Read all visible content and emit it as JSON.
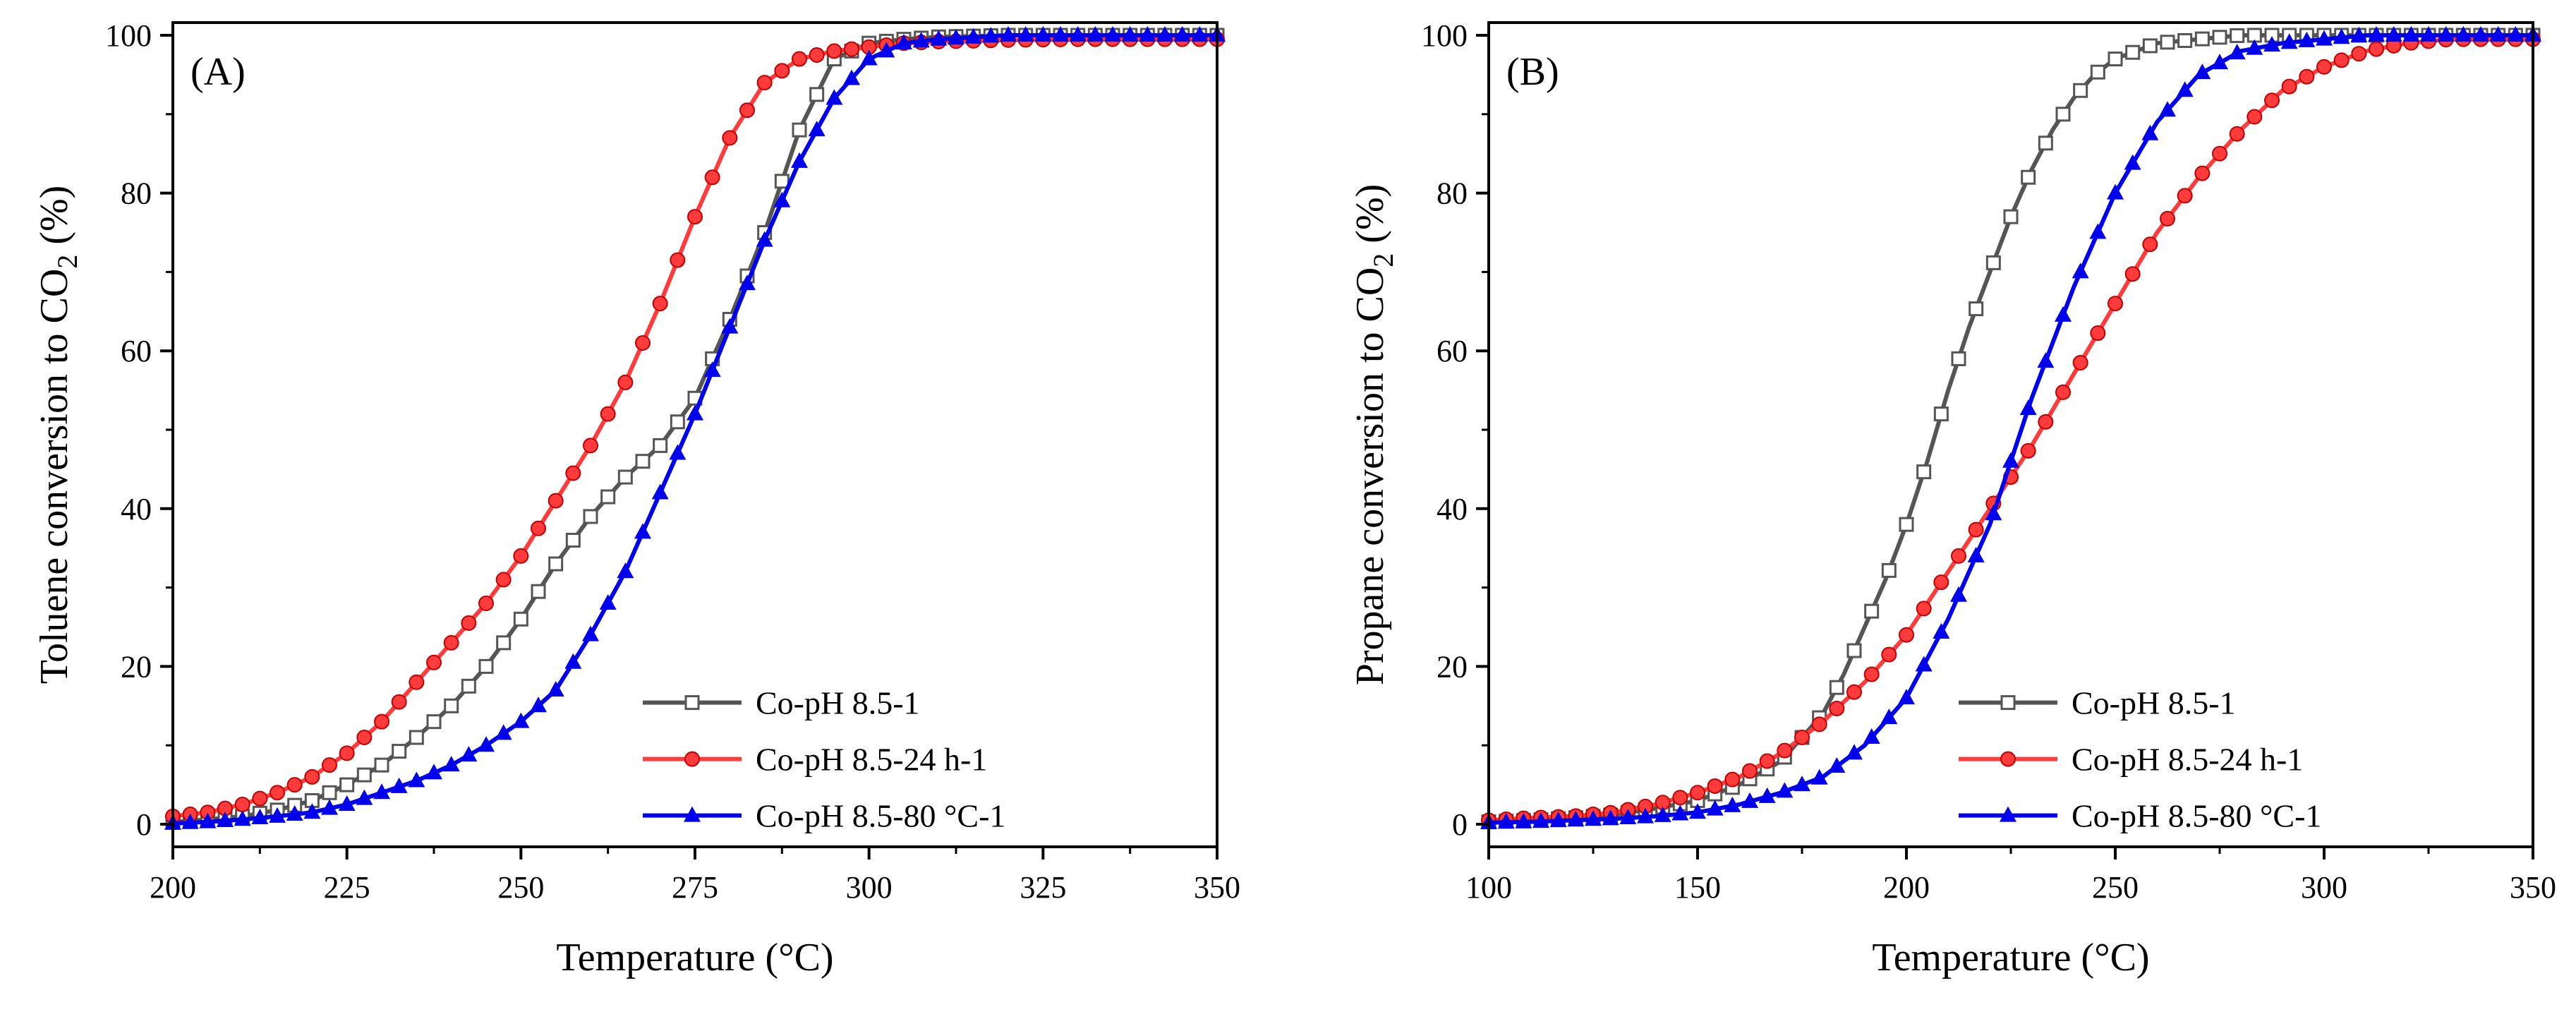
{
  "chart_data": [
    {
      "type": "line",
      "panel_label": "(A)",
      "xlabel": "Temperature (°C)",
      "ylabel": {
        "pre": "Toluene conversion to CO",
        "sub": "2",
        "post": " (%)"
      },
      "xlim": [
        200,
        350
      ],
      "ylim": [
        0,
        100
      ],
      "xticks": [
        "200",
        "225",
        "250",
        "275",
        "300",
        "325",
        "350"
      ],
      "yticks": [
        "0",
        "20",
        "40",
        "60",
        "80",
        "100"
      ],
      "legend_position": "bottom-right",
      "series": [
        {
          "name": "Co-pH 8.5-1",
          "color": "#555555",
          "marker": "square",
          "x": [
            200,
            205,
            210,
            215,
            220,
            225,
            230,
            235,
            240,
            245,
            250,
            255,
            260,
            265,
            270,
            275,
            280,
            285,
            290,
            295,
            300,
            305,
            310,
            320,
            330,
            340,
            350
          ],
          "y": [
            0.3,
            0.6,
            1,
            1.8,
            3,
            5,
            7.5,
            11,
            15,
            20,
            26,
            33,
            39,
            44,
            48,
            54,
            64,
            75,
            88,
            97,
            99,
            99.5,
            99.8,
            100,
            100,
            100,
            100
          ]
        },
        {
          "name": "Co-pH 8.5-24 h-1",
          "color": "#ff3b3b",
          "marker": "circle",
          "x": [
            200,
            205,
            210,
            215,
            220,
            225,
            230,
            235,
            240,
            245,
            250,
            255,
            260,
            265,
            270,
            275,
            280,
            285,
            290,
            295,
            300,
            305,
            310,
            320,
            330,
            340,
            350
          ],
          "y": [
            1,
            1.5,
            2.5,
            4,
            6,
            9,
            13,
            18,
            23,
            28,
            34,
            41,
            48,
            56,
            66,
            77,
            87,
            94,
            97,
            98,
            98.5,
            99,
            99.2,
            99.4,
            99.5,
            99.5,
            99.5
          ]
        },
        {
          "name": "Co-pH 8.5-80 °C-1",
          "color": "#0000ee",
          "marker": "triangle",
          "x": [
            200,
            205,
            210,
            215,
            220,
            225,
            230,
            235,
            240,
            245,
            250,
            255,
            260,
            265,
            270,
            275,
            280,
            285,
            290,
            295,
            300,
            305,
            310,
            320,
            330,
            340,
            350
          ],
          "y": [
            0.1,
            0.3,
            0.6,
            1,
            1.5,
            2.5,
            4,
            5.5,
            7.5,
            10,
            13,
            17,
            24,
            32,
            42,
            52,
            63,
            74,
            84,
            92,
            97,
            99,
            99.5,
            100,
            100,
            100,
            100
          ]
        }
      ]
    },
    {
      "type": "line",
      "panel_label": "(B)",
      "xlabel": "Temperature (°C)",
      "ylabel": {
        "pre": "Propane conversion to CO",
        "sub": "2",
        "post": " (%)"
      },
      "xlim": [
        100,
        350
      ],
      "ylim": [
        0,
        100
      ],
      "xticks": [
        "100",
        "150",
        "200",
        "250",
        "300",
        "350"
      ],
      "yticks": [
        "0",
        "20",
        "40",
        "60",
        "80",
        "100"
      ],
      "legend_position": "bottom-right",
      "series": [
        {
          "name": "Co-pH 8.5-1",
          "color": "#555555",
          "marker": "square",
          "x": [
            100,
            110,
            120,
            130,
            140,
            150,
            160,
            170,
            175,
            180,
            185,
            190,
            195,
            200,
            205,
            210,
            215,
            220,
            225,
            230,
            235,
            240,
            245,
            250,
            260,
            270,
            280,
            300,
            320,
            350
          ],
          "y": [
            0.3,
            0.5,
            0.8,
            1.2,
            2,
            3,
            5,
            8,
            11,
            14,
            19,
            25,
            31,
            38,
            46,
            55,
            63,
            70,
            77,
            83,
            88,
            92,
            95,
            97,
            99,
            99.5,
            100,
            100,
            100,
            100
          ]
        },
        {
          "name": "Co-pH 8.5-24 h-1",
          "color": "#ff3b3b",
          "marker": "circle",
          "x": [
            100,
            110,
            120,
            130,
            140,
            150,
            160,
            170,
            180,
            190,
            200,
            210,
            220,
            230,
            240,
            250,
            260,
            270,
            280,
            290,
            300,
            310,
            320,
            330,
            340,
            350
          ],
          "y": [
            0.5,
            0.8,
            1,
            1.5,
            2.5,
            4,
            6,
            9,
            13,
            18,
            24,
            32,
            40,
            48,
            57,
            66,
            75,
            82,
            88,
            93,
            96,
            98,
            99,
            99.5,
            99.5,
            99.5
          ]
        },
        {
          "name": "Co-pH 8.5-80 °C-1",
          "color": "#0000ee",
          "marker": "triangle",
          "x": [
            100,
            110,
            120,
            130,
            140,
            150,
            160,
            170,
            180,
            190,
            200,
            210,
            220,
            225,
            230,
            240,
            250,
            260,
            270,
            280,
            290,
            300,
            310,
            320,
            330,
            340,
            350
          ],
          "y": [
            0.2,
            0.3,
            0.5,
            0.7,
            1,
            1.5,
            2.5,
            4,
            6,
            10,
            16,
            26,
            38,
            46,
            54,
            68,
            80,
            89,
            95,
            98,
            99,
            99.5,
            100,
            100,
            100,
            100,
            100
          ]
        }
      ]
    }
  ]
}
